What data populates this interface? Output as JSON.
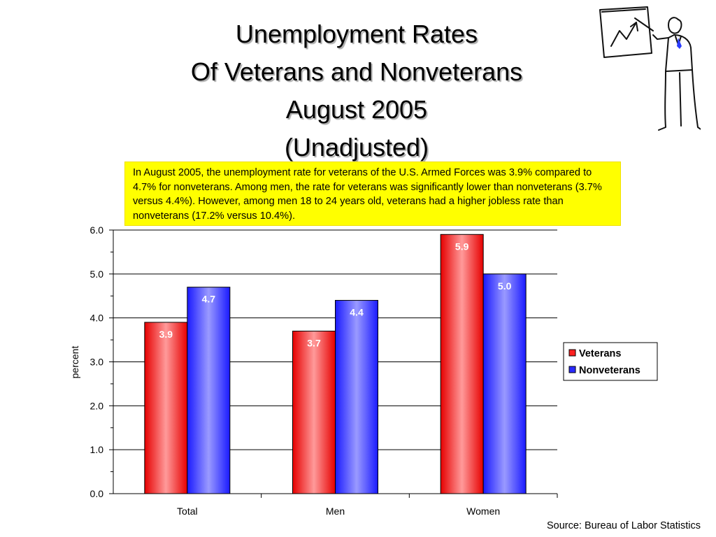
{
  "slide": {
    "title_lines": [
      "Unemployment Rates",
      "Of Veterans and Nonveterans",
      "August 2005",
      "(Unadjusted)"
    ],
    "callout_text": "In August 2005, the unemployment rate for veterans of the U.S. Armed Forces was 3.9% compared to 4.7% for nonveterans. Among men, the rate for veterans was significantly lower than nonveterans (3.7% versus 4.4%). However, among men 18 to 24 years old, veterans had a higher jobless rate than nonveterans (17.2% versus 10.4%).",
    "source": "Source: Bureau of Labor Statistics",
    "clipart_icon": "presenter-with-chart-icon"
  },
  "chart_data": {
    "type": "bar",
    "categories": [
      "Total",
      "Men",
      "Women"
    ],
    "series": [
      {
        "name": "Veterans",
        "values": [
          3.9,
          3.7,
          5.9
        ],
        "labels": [
          "3.9",
          "3.7",
          "5.9"
        ],
        "color": "#ff2020"
      },
      {
        "name": "Nonveterans",
        "values": [
          4.7,
          4.4,
          5.0
        ],
        "labels": [
          "4.7",
          "4.4",
          "5.0"
        ],
        "color": "#2a2aff"
      }
    ],
    "ylabel": "percent",
    "xlabel": "",
    "ylim": [
      0,
      6
    ],
    "yticks": [
      "0.0",
      "1.0",
      "2.0",
      "3.0",
      "4.0",
      "5.0",
      "6.0"
    ],
    "grid": true,
    "legend_position": "right"
  }
}
